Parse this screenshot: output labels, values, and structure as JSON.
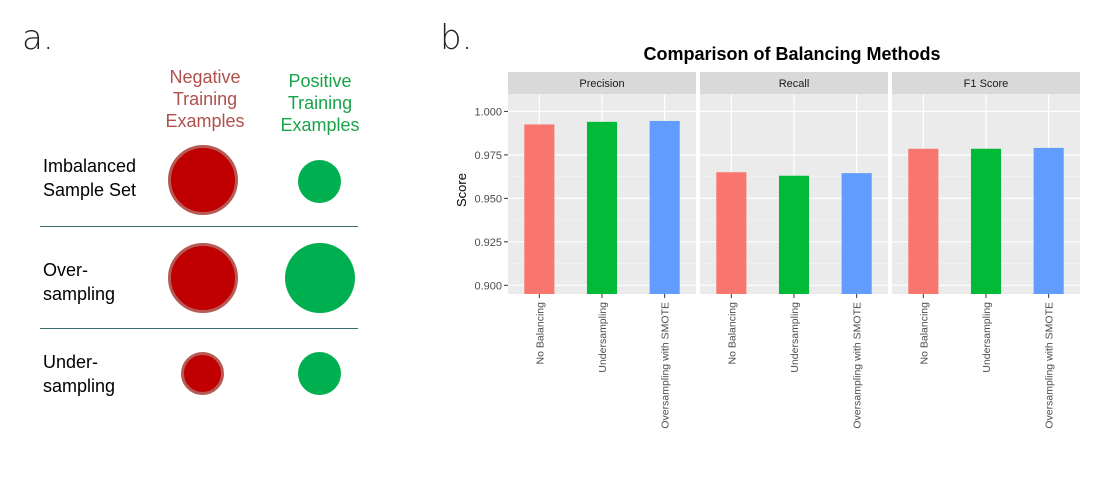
{
  "panel_a": {
    "letter": "a.",
    "headers": {
      "negative": "Negative Training Examples",
      "positive": "Positive Training Examples"
    },
    "rows": [
      {
        "label": "Imbalanced Sample Set",
        "negative_relative_size": 1.0,
        "positive_relative_size": 0.6
      },
      {
        "label": "Over-sampling",
        "negative_relative_size": 1.0,
        "positive_relative_size": 1.0
      },
      {
        "label": "Under-sampling",
        "negative_relative_size": 0.6,
        "positive_relative_size": 0.6
      }
    ],
    "colors": {
      "negative": "#c00000",
      "negative_border": "#b65a55",
      "positive": "#00b050",
      "negative_text": "#b0504c",
      "positive_text": "#19a34a"
    }
  },
  "panel_b": {
    "letter": "b."
  },
  "chart_data": {
    "type": "bar",
    "title": "Comparison of Balancing Methods",
    "ylabel": "Score",
    "xlabel": "",
    "ylim": [
      0.895,
      1.01
    ],
    "yticks": [
      0.9,
      0.925,
      0.95,
      0.975,
      1.0
    ],
    "ytick_labels": [
      "0.900",
      "0.925",
      "0.950",
      "0.975",
      "1.000"
    ],
    "categories": [
      "No Balancing",
      "Undersampling",
      "Oversampling with SMOTE"
    ],
    "colors": [
      "#f8766d",
      "#00ba38",
      "#619cff"
    ],
    "facets": [
      {
        "name": "Precision",
        "values": [
          0.9925,
          0.994,
          0.9945
        ]
      },
      {
        "name": "Recall",
        "values": [
          0.965,
          0.963,
          0.9645
        ]
      },
      {
        "name": "F1 Score",
        "values": [
          0.9785,
          0.9785,
          0.979
        ]
      }
    ],
    "grid": true
  }
}
